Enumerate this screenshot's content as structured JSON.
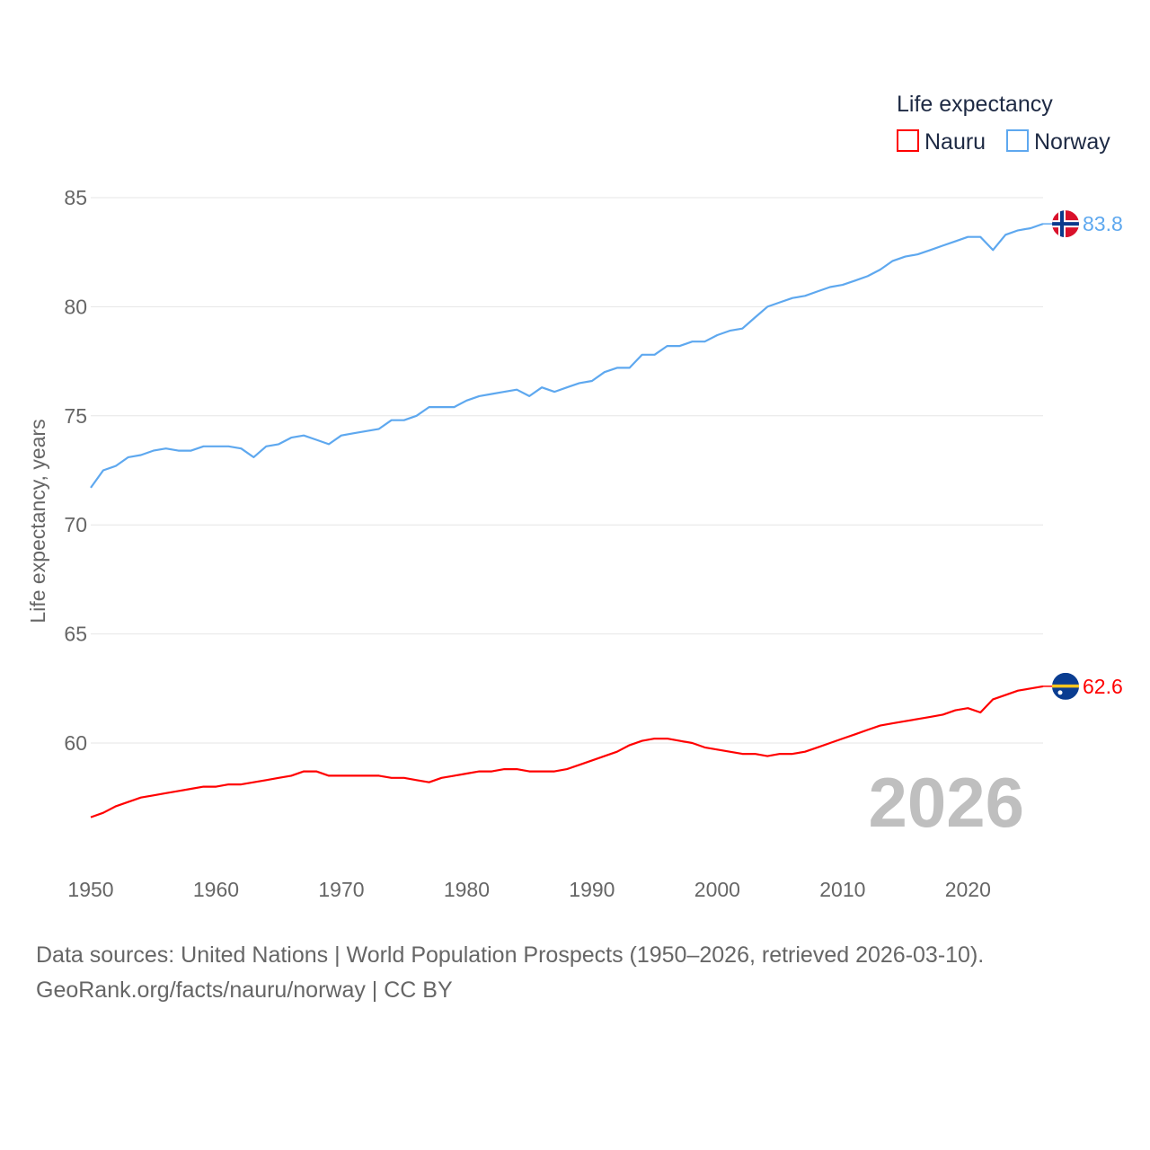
{
  "chart_data": {
    "type": "line",
    "title": "",
    "xlabel": "",
    "ylabel": "Life expectancy, years",
    "xlim": [
      1950,
      2026
    ],
    "ylim": [
      55,
      85
    ],
    "yticks": [
      60,
      65,
      70,
      75,
      80,
      85
    ],
    "xticks": [
      1950,
      1960,
      1970,
      1980,
      1990,
      2000,
      2010,
      2020
    ],
    "grid": true,
    "legend": {
      "title": "Life expectancy",
      "placement": "top-right",
      "entries": [
        "Nauru",
        "Norway"
      ]
    },
    "year_label": "2026",
    "x": [
      1950,
      1951,
      1952,
      1953,
      1954,
      1955,
      1956,
      1957,
      1958,
      1959,
      1960,
      1961,
      1962,
      1963,
      1964,
      1965,
      1966,
      1967,
      1968,
      1969,
      1970,
      1971,
      1972,
      1973,
      1974,
      1975,
      1976,
      1977,
      1978,
      1979,
      1980,
      1981,
      1982,
      1983,
      1984,
      1985,
      1986,
      1987,
      1988,
      1989,
      1990,
      1991,
      1992,
      1993,
      1994,
      1995,
      1996,
      1997,
      1998,
      1999,
      2000,
      2001,
      2002,
      2003,
      2004,
      2005,
      2006,
      2007,
      2008,
      2009,
      2010,
      2011,
      2012,
      2013,
      2014,
      2015,
      2016,
      2017,
      2018,
      2019,
      2020,
      2021,
      2022,
      2023,
      2024,
      2025,
      2026
    ],
    "series": [
      {
        "name": "Nauru",
        "color": "#ff0000",
        "end_label": "62.6",
        "values": [
          56.6,
          56.8,
          57.1,
          57.3,
          57.5,
          57.6,
          57.7,
          57.8,
          57.9,
          58.0,
          58.0,
          58.1,
          58.1,
          58.2,
          58.3,
          58.4,
          58.5,
          58.7,
          58.7,
          58.5,
          58.5,
          58.5,
          58.5,
          58.5,
          58.4,
          58.4,
          58.3,
          58.2,
          58.4,
          58.5,
          58.6,
          58.7,
          58.7,
          58.8,
          58.8,
          58.7,
          58.7,
          58.7,
          58.8,
          59.0,
          59.2,
          59.4,
          59.6,
          59.9,
          60.1,
          60.2,
          60.2,
          60.1,
          60.0,
          59.8,
          59.7,
          59.6,
          59.5,
          59.5,
          59.4,
          59.5,
          59.5,
          59.6,
          59.8,
          60.0,
          60.2,
          60.4,
          60.6,
          60.8,
          60.9,
          61.0,
          61.1,
          61.2,
          61.3,
          61.5,
          61.6,
          61.4,
          62.0,
          62.2,
          62.4,
          62.5,
          62.6
        ]
      },
      {
        "name": "Norway",
        "color": "#5ea8ef",
        "end_label": "83.8",
        "values": [
          71.7,
          72.5,
          72.7,
          73.1,
          73.2,
          73.4,
          73.5,
          73.4,
          73.4,
          73.6,
          73.6,
          73.6,
          73.5,
          73.1,
          73.6,
          73.7,
          74.0,
          74.1,
          73.9,
          73.7,
          74.1,
          74.2,
          74.3,
          74.4,
          74.8,
          74.8,
          75.0,
          75.4,
          75.4,
          75.4,
          75.7,
          75.9,
          76.0,
          76.1,
          76.2,
          75.9,
          76.3,
          76.1,
          76.3,
          76.5,
          76.6,
          77.0,
          77.2,
          77.2,
          77.8,
          77.8,
          78.2,
          78.2,
          78.4,
          78.4,
          78.7,
          78.9,
          79.0,
          79.5,
          80.0,
          80.2,
          80.4,
          80.5,
          80.7,
          80.9,
          81.0,
          81.2,
          81.4,
          81.7,
          82.1,
          82.3,
          82.4,
          82.6,
          82.8,
          83.0,
          83.2,
          83.2,
          82.6,
          83.3,
          83.5,
          83.6,
          83.8
        ]
      }
    ]
  },
  "footer": {
    "line1": "Data sources: United Nations | World Population Prospects (1950–2026, retrieved 2026-03-10).",
    "line2": "GeoRank.org/facts/nauru/norway | CC BY"
  }
}
